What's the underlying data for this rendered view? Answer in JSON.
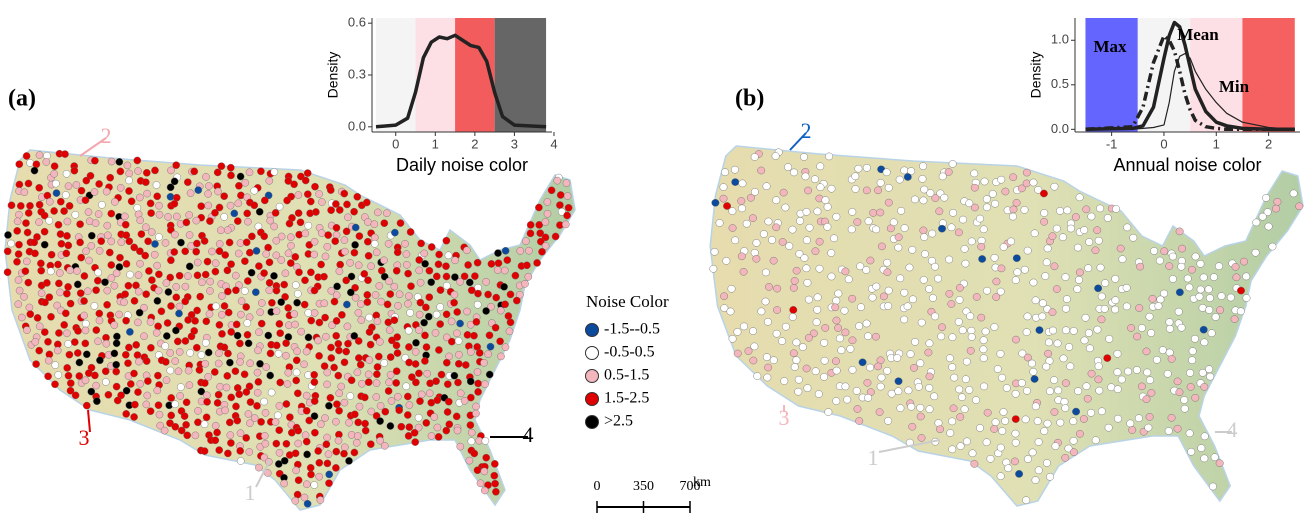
{
  "panel_labels": [
    "(a)",
    "(b)"
  ],
  "chart_data": [
    {
      "type": "line",
      "xlabel": "Daily noise color",
      "ylabel": "Density",
      "xlim": [
        -0.6,
        3.95
      ],
      "ylim": [
        -0.03,
        0.63
      ],
      "xticks": [
        0,
        1,
        2,
        3,
        4
      ],
      "yticks": [
        {
          "value": 0,
          "label": "0.0"
        },
        0.3,
        {
          "value": 0.6,
          "label": "0.6"
        }
      ],
      "bands": [
        {
          "from": -0.5,
          "to": 0.5,
          "color": "#f4f4f4"
        },
        {
          "from": 0.5,
          "to": 1.5,
          "color": "#fde0e6"
        },
        {
          "from": 1.5,
          "to": 2.5,
          "color": "#f25c5c"
        },
        {
          "from": 2.5,
          "to": 3.8,
          "color": "#666666"
        }
      ],
      "x": [
        -0.5,
        0,
        0.3,
        0.5,
        0.7,
        0.9,
        1.1,
        1.3,
        1.5,
        1.7,
        1.9,
        2.1,
        2.3,
        2.5,
        2.7,
        3.0,
        3.8
      ],
      "series": [
        {
          "color": "#222222",
          "values": [
            0,
            0.01,
            0.05,
            0.2,
            0.4,
            0.49,
            0.52,
            0.51,
            0.53,
            0.5,
            0.47,
            0.46,
            0.38,
            0.2,
            0.06,
            0.01,
            0
          ]
        }
      ]
    },
    {
      "type": "line",
      "xlabel": "Annual noise color",
      "ylabel": "Density",
      "xlim": [
        -1.7,
        2.6
      ],
      "ylim": [
        -0.03,
        1.25
      ],
      "xticks": [
        -1,
        0,
        1,
        2
      ],
      "yticks": [
        {
          "value": 0,
          "label": "0.0"
        },
        0.5,
        {
          "value": 1,
          "label": "1.0"
        }
      ],
      "bands": [
        {
          "from": -1.5,
          "to": -0.5,
          "color": "#6464ff"
        },
        {
          "from": -0.5,
          "to": 0.5,
          "color": "#f4f4f4"
        },
        {
          "from": 0.5,
          "to": 1.5,
          "color": "#fde0e6"
        },
        {
          "from": 1.5,
          "to": 2.5,
          "color": "#f56060"
        }
      ],
      "x": [
        -1.5,
        -0.6,
        -0.4,
        -0.2,
        0,
        0.1,
        0.2,
        0.3,
        0.4,
        0.5,
        0.6,
        0.8,
        1.0,
        1.2,
        1.5,
        2.0,
        2.5
      ],
      "series": [
        {
          "name": "Max",
          "color": "#222222",
          "line_style": "dashdot",
          "width": 3.5,
          "values": [
            0,
            0.03,
            0.25,
            0.75,
            1.05,
            1.0,
            0.88,
            0.65,
            0.4,
            0.22,
            0.1,
            0.03,
            0.01,
            0,
            0,
            0,
            0
          ]
        },
        {
          "name": "Mean",
          "color": "#222222",
          "line_style": "solid",
          "width": 3.5,
          "values": [
            0,
            0.01,
            0.04,
            0.25,
            0.8,
            1.05,
            1.2,
            1.15,
            0.95,
            0.7,
            0.45,
            0.2,
            0.08,
            0.04,
            0.01,
            0,
            0
          ]
        },
        {
          "name": "Min",
          "color": "#222222",
          "line_style": "solid",
          "width": 1.2,
          "values": [
            0,
            0,
            0.01,
            0.02,
            0.05,
            0.3,
            0.65,
            0.82,
            0.85,
            0.8,
            0.65,
            0.45,
            0.3,
            0.18,
            0.08,
            0.02,
            0
          ]
        }
      ]
    }
  ],
  "legend": {
    "title": "Noise Color",
    "items": [
      {
        "label": "-1.5--0.5",
        "color": "#0b4a9c"
      },
      {
        "label": "-0.5-0.5",
        "color": "#ffffff"
      },
      {
        "label": "0.5-1.5",
        "color": "#f4b6bd"
      },
      {
        "label": "1.5-2.5",
        "color": "#e00000"
      },
      {
        "label": ">2.5",
        "color": "#000000"
      }
    ]
  },
  "scale_bar": {
    "ticks": [
      0,
      350,
      700
    ],
    "unit": "km"
  },
  "maps": [
    {
      "sites": [
        {
          "label": "1",
          "color": "#cccccc"
        },
        {
          "label": "2",
          "color": "#f4a6ae"
        },
        {
          "label": "3",
          "color": "#e00000"
        },
        {
          "label": "4",
          "color": "#000000"
        }
      ]
    },
    {
      "sites": [
        {
          "label": "1",
          "color": "#cccccc"
        },
        {
          "label": "2",
          "color": "#1060c0"
        },
        {
          "label": "3",
          "color": "#f4b6bd"
        },
        {
          "label": "4",
          "color": "#cccccc"
        }
      ]
    }
  ]
}
